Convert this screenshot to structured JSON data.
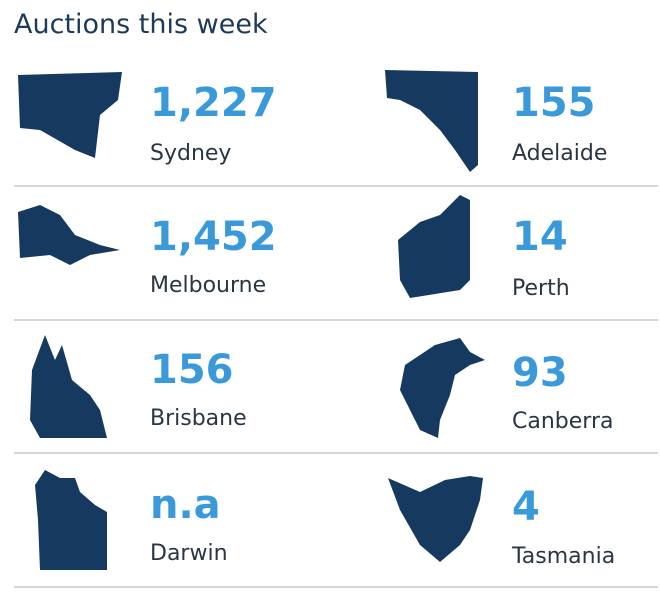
{
  "title": "Auctions this week",
  "cities": [
    {
      "value": "1,227",
      "name": "Sydney"
    },
    {
      "value": "155",
      "name": "Adelaide"
    },
    {
      "value": "1,452",
      "name": "Melbourne"
    },
    {
      "value": "14",
      "name": "Perth"
    },
    {
      "value": "156",
      "name": "Brisbane"
    },
    {
      "value": "93",
      "name": "Canberra"
    },
    {
      "value": "n.a",
      "name": "Darwin"
    },
    {
      "value": "4",
      "name": "Tasmania"
    }
  ]
}
